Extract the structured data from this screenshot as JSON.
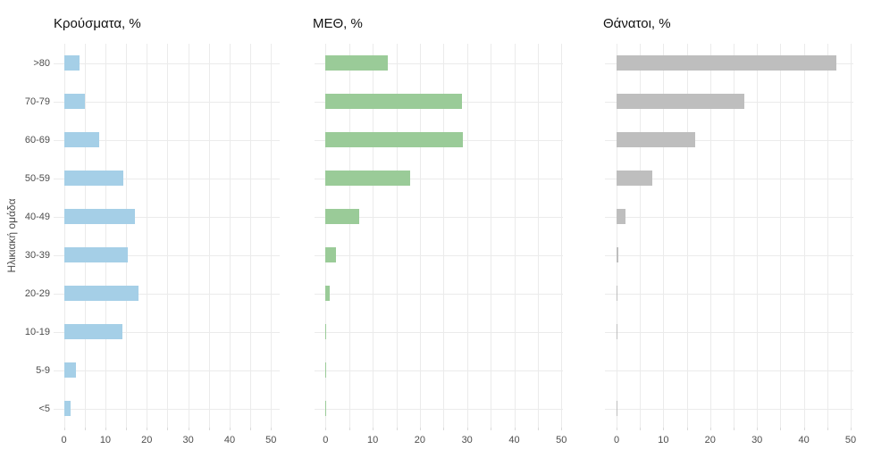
{
  "figure": {
    "y_axis_title": "Ηλικιακή ομάδα",
    "background_color": "#ffffff",
    "gridline_color": "#ebebeb",
    "axis_text_color": "#4d4d4d",
    "title_text_color": "#111111"
  },
  "chart_data": [
    {
      "type": "bar",
      "orientation": "horizontal",
      "title": "Κρούσματα, %",
      "ylabel": "Ηλικιακή ομάδα",
      "categories": [
        ">80",
        "70-79",
        "60-69",
        "50-59",
        "40-49",
        "30-39",
        "20-29",
        "10-19",
        "5-9",
        "<5"
      ],
      "values": [
        3.8,
        5.0,
        8.6,
        14.4,
        17.1,
        15.5,
        17.9,
        14.1,
        2.9,
        1.5
      ],
      "bar_color": "#a5cfe7",
      "xlim": [
        0,
        52.5
      ],
      "xticks": [
        0,
        10,
        20,
        30,
        40,
        50
      ],
      "x_gridlines": [
        0,
        5,
        10,
        15,
        20,
        25,
        30,
        35,
        40,
        45,
        50
      ],
      "grid": true,
      "legend": false
    },
    {
      "type": "bar",
      "orientation": "horizontal",
      "title": "ΜΕΘ, %",
      "ylabel": "",
      "categories": [
        ">80",
        "70-79",
        "60-69",
        "50-59",
        "40-49",
        "30-39",
        "20-29",
        "10-19",
        "5-9",
        "<5"
      ],
      "values": [
        13.2,
        29.0,
        29.2,
        18.0,
        7.1,
        2.2,
        0.9,
        0.2,
        0.1,
        0.15
      ],
      "bar_color": "#9acb98",
      "xlim": [
        0,
        52.5
      ],
      "xticks": [
        0,
        10,
        20,
        30,
        40,
        50
      ],
      "x_gridlines": [
        0,
        5,
        10,
        15,
        20,
        25,
        30,
        35,
        40,
        45,
        50
      ],
      "grid": true,
      "legend": false
    },
    {
      "type": "bar",
      "orientation": "horizontal",
      "title": "Θάνατοι, %",
      "ylabel": "",
      "categories": [
        ">80",
        "70-79",
        "60-69",
        "50-59",
        "40-49",
        "30-39",
        "20-29",
        "10-19",
        "5-9",
        "<5"
      ],
      "values": [
        47.0,
        27.2,
        16.7,
        7.7,
        1.9,
        0.45,
        0.1,
        0.15,
        0.0,
        0.1
      ],
      "bar_color": "#bebebe",
      "xlim": [
        0,
        52.5
      ],
      "xticks": [
        0,
        10,
        20,
        30,
        40,
        50
      ],
      "x_gridlines": [
        0,
        5,
        10,
        15,
        20,
        25,
        30,
        35,
        40,
        45,
        50
      ],
      "grid": true,
      "legend": false
    }
  ]
}
